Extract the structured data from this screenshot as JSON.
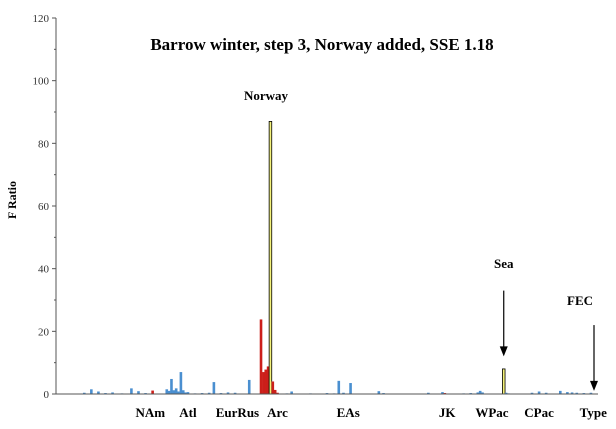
{
  "chart_data": {
    "type": "bar",
    "title": "Barrow winter, step 3, Norway added, SSE 1.18",
    "xlabel": "",
    "ylabel": "F Ratio",
    "ylim": [
      0,
      120
    ],
    "yticks": [
      0,
      20,
      40,
      60,
      80,
      100,
      120
    ],
    "grid": false,
    "colors": {
      "blue": "#4a8fd0",
      "red": "#cc1f1a",
      "yellow": "#f4f27a",
      "outline": "#000000"
    },
    "groups": [
      {
        "label": "NAm",
        "x": 50
      },
      {
        "label": "Atl",
        "x": 66
      },
      {
        "label": "EurRus",
        "x": 87
      },
      {
        "label": "Arc",
        "x": 104
      },
      {
        "label": "EAs",
        "x": 134
      },
      {
        "label": "JK",
        "x": 176
      },
      {
        "label": "WPac",
        "x": 195
      },
      {
        "label": "CPac",
        "x": 215
      },
      {
        "label": "Type",
        "x": 238
      }
    ],
    "bars": [
      {
        "x": 22,
        "value": 0.4,
        "color": "blue"
      },
      {
        "x": 25,
        "value": 1.5,
        "color": "blue"
      },
      {
        "x": 28,
        "value": 0.8,
        "color": "blue"
      },
      {
        "x": 31,
        "value": 0.3,
        "color": "blue"
      },
      {
        "x": 34,
        "value": 0.5,
        "color": "blue"
      },
      {
        "x": 38,
        "value": 0.2,
        "color": "blue"
      },
      {
        "x": 42,
        "value": 1.8,
        "color": "blue"
      },
      {
        "x": 45,
        "value": 0.9,
        "color": "blue"
      },
      {
        "x": 48,
        "value": 0.3,
        "color": "blue"
      },
      {
        "x": 51,
        "value": 1.1,
        "color": "red"
      },
      {
        "x": 57,
        "value": 1.5,
        "color": "blue"
      },
      {
        "x": 58,
        "value": 1.0,
        "color": "blue"
      },
      {
        "x": 59,
        "value": 4.8,
        "color": "blue"
      },
      {
        "x": 60,
        "value": 1.2,
        "color": "blue"
      },
      {
        "x": 61,
        "value": 1.8,
        "color": "blue"
      },
      {
        "x": 62,
        "value": 0.8,
        "color": "blue"
      },
      {
        "x": 63,
        "value": 7.0,
        "color": "blue"
      },
      {
        "x": 64,
        "value": 1.2,
        "color": "blue"
      },
      {
        "x": 65,
        "value": 0.5,
        "color": "blue"
      },
      {
        "x": 66,
        "value": 0.6,
        "color": "blue"
      },
      {
        "x": 69,
        "value": 0.2,
        "color": "blue"
      },
      {
        "x": 72,
        "value": 0.3,
        "color": "blue"
      },
      {
        "x": 75,
        "value": 0.4,
        "color": "blue"
      },
      {
        "x": 77,
        "value": 3.8,
        "color": "blue"
      },
      {
        "x": 80,
        "value": 0.3,
        "color": "blue"
      },
      {
        "x": 83,
        "value": 0.5,
        "color": "blue"
      },
      {
        "x": 86,
        "value": 0.4,
        "color": "blue"
      },
      {
        "x": 92,
        "value": 4.5,
        "color": "blue"
      },
      {
        "x": 97,
        "value": 23.8,
        "color": "red"
      },
      {
        "x": 98,
        "value": 7.0,
        "color": "red"
      },
      {
        "x": 99,
        "value": 7.8,
        "color": "red"
      },
      {
        "x": 100,
        "value": 8.8,
        "color": "red"
      },
      {
        "x": 101,
        "value": 87.0,
        "color": "yellow"
      },
      {
        "x": 102,
        "value": 4.0,
        "color": "red"
      },
      {
        "x": 103,
        "value": 1.3,
        "color": "red"
      },
      {
        "x": 104,
        "value": 0.4,
        "color": "red"
      },
      {
        "x": 108,
        "value": 0.2,
        "color": "blue"
      },
      {
        "x": 110,
        "value": 0.8,
        "color": "blue"
      },
      {
        "x": 118,
        "value": 0.2,
        "color": "blue"
      },
      {
        "x": 125,
        "value": 0.3,
        "color": "blue"
      },
      {
        "x": 128,
        "value": 0.2,
        "color": "blue"
      },
      {
        "x": 130,
        "value": 4.2,
        "color": "blue"
      },
      {
        "x": 132,
        "value": 0.4,
        "color": "blue"
      },
      {
        "x": 135,
        "value": 3.5,
        "color": "blue"
      },
      {
        "x": 147,
        "value": 0.9,
        "color": "blue"
      },
      {
        "x": 149,
        "value": 0.3,
        "color": "blue"
      },
      {
        "x": 168,
        "value": 0.4,
        "color": "blue"
      },
      {
        "x": 174,
        "value": 0.6,
        "color": "blue"
      },
      {
        "x": 175,
        "value": 0.3,
        "color": "red"
      },
      {
        "x": 183,
        "value": 0.2,
        "color": "blue"
      },
      {
        "x": 186,
        "value": 0.3,
        "color": "blue"
      },
      {
        "x": 189,
        "value": 0.5,
        "color": "blue"
      },
      {
        "x": 190,
        "value": 1.0,
        "color": "blue"
      },
      {
        "x": 191,
        "value": 0.5,
        "color": "blue"
      },
      {
        "x": 200,
        "value": 8.0,
        "color": "yellow"
      },
      {
        "x": 201,
        "value": 0.4,
        "color": "blue"
      },
      {
        "x": 202,
        "value": 0.2,
        "color": "blue"
      },
      {
        "x": 212,
        "value": 0.4,
        "color": "blue"
      },
      {
        "x": 215,
        "value": 0.8,
        "color": "blue"
      },
      {
        "x": 218,
        "value": 0.4,
        "color": "blue"
      },
      {
        "x": 224,
        "value": 1.0,
        "color": "blue"
      },
      {
        "x": 227,
        "value": 0.6,
        "color": "blue"
      },
      {
        "x": 229,
        "value": 0.5,
        "color": "blue"
      },
      {
        "x": 231,
        "value": 0.4,
        "color": "blue"
      },
      {
        "x": 234,
        "value": 0.3,
        "color": "blue"
      },
      {
        "x": 237,
        "value": 0.4,
        "color": "blue"
      }
    ],
    "xlim": [
      10,
      240
    ],
    "annotations": [
      {
        "text": "Norway",
        "points_to_value": 87.0,
        "arrow": false
      },
      {
        "text": "Sea",
        "points_to_value": 12.0,
        "arrow": true,
        "arrow_from_value": 33.0
      },
      {
        "text": "FEC",
        "points_to_value": 1.0,
        "arrow": true,
        "arrow_from_value": 22.0
      }
    ]
  }
}
